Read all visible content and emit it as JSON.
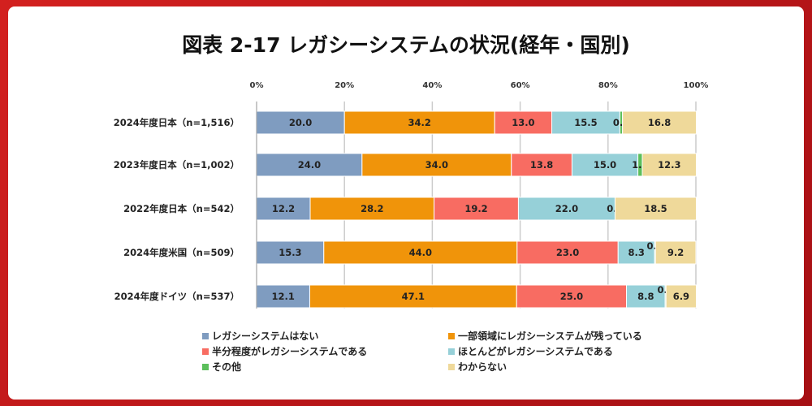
{
  "chart_data": {
    "type": "bar",
    "orientation": "horizontal",
    "stacked": true,
    "title": "図表 2-17 レガシーシステムの状況(経年・国別)",
    "categories": [
      "2024年度日本（n=1,516）",
      "2023年度日本（n=1,002）",
      "2022年度日本（n=542）",
      "2024年度米国（n=509）",
      "2024年度ドイツ（n=537）"
    ],
    "xlim": [
      0,
      100
    ],
    "xticks": [
      "0%",
      "20%",
      "40%",
      "60%",
      "80%",
      "100%"
    ],
    "grid": true,
    "legend_position": "bottom",
    "series": [
      {
        "name": "レガシーシステムはない",
        "color": "#7f9cc0",
        "values": [
          20.0,
          24.0,
          12.2,
          15.3,
          12.1
        ]
      },
      {
        "name": "一部領域にレガシーシステムが残っている",
        "color": "#f0940a",
        "values": [
          34.2,
          34.0,
          28.2,
          44.0,
          47.1
        ]
      },
      {
        "name": "半分程度がレガシーシステムである",
        "color": "#f86c62",
        "values": [
          13.0,
          13.8,
          19.2,
          23.0,
          25.0
        ]
      },
      {
        "name": "ほとんどがレガシーシステムである",
        "color": "#96d0d8",
        "values": [
          15.5,
          15.0,
          22.0,
          8.3,
          8.8
        ]
      },
      {
        "name": "その他",
        "color": "#5cbf5c",
        "values": [
          0.6,
          1.0,
          0.0,
          0.2,
          0.2
        ]
      },
      {
        "name": "わからない",
        "color": "#efd99a",
        "values": [
          16.8,
          12.3,
          18.5,
          9.2,
          6.9
        ]
      }
    ]
  }
}
